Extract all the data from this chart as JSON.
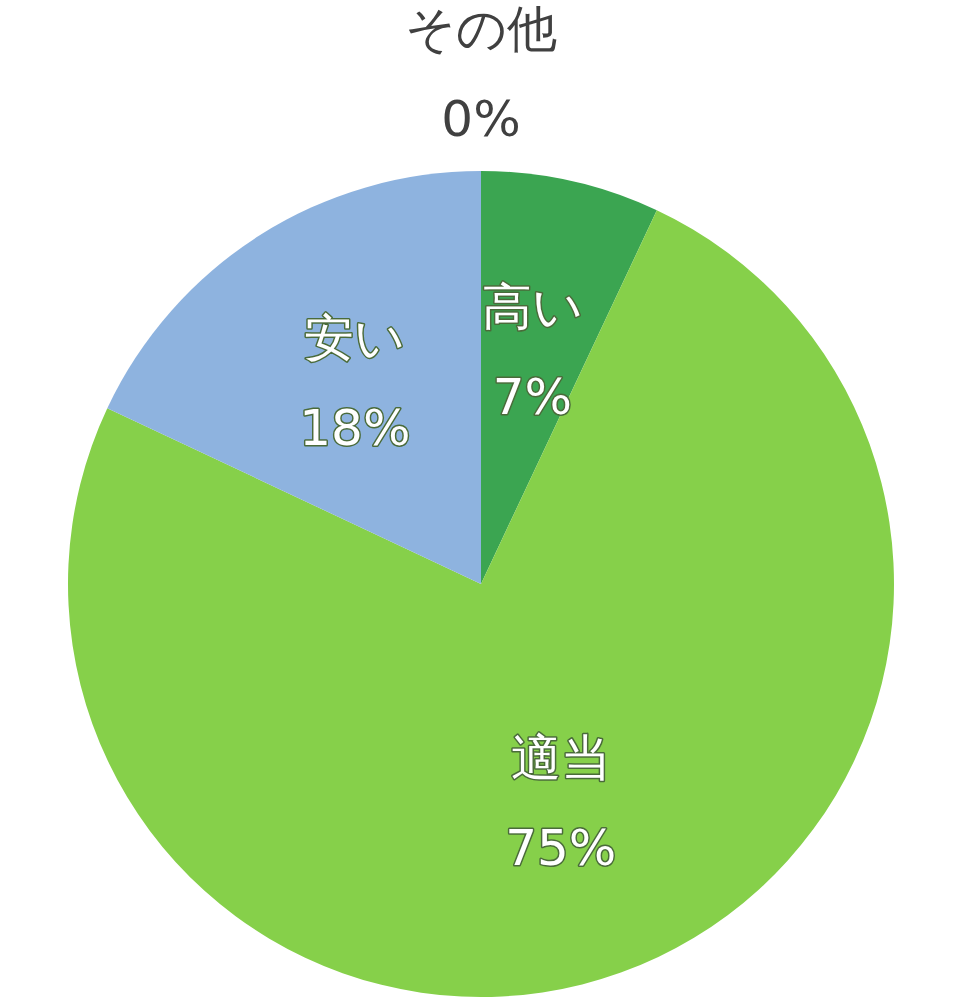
{
  "chart_data": {
    "type": "pie",
    "categories": [
      "高い",
      "適当",
      "安い",
      "その他"
    ],
    "values": [
      7,
      75,
      18,
      0
    ],
    "colors": [
      "#3ba551",
      "#86d04a",
      "#8eb3df",
      null
    ],
    "value_labels": [
      "7%",
      "75%",
      "18%",
      "0%"
    ]
  }
}
